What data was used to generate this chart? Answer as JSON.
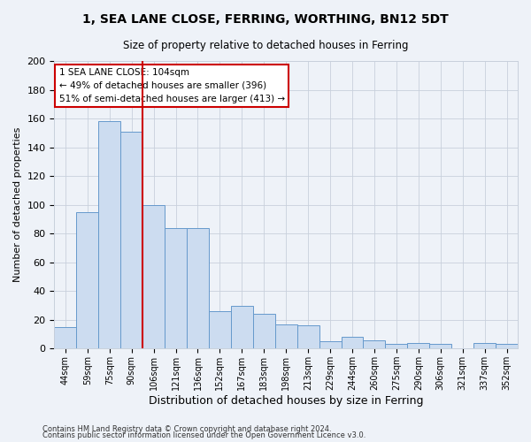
{
  "title": "1, SEA LANE CLOSE, FERRING, WORTHING, BN12 5DT",
  "subtitle": "Size of property relative to detached houses in Ferring",
  "xlabel": "Distribution of detached houses by size in Ferring",
  "ylabel": "Number of detached properties",
  "bar_color": "#ccdcf0",
  "bar_edge_color": "#6699cc",
  "grid_color": "#c8d0dc",
  "background_color": "#eef2f8",
  "categories": [
    "44sqm",
    "59sqm",
    "75sqm",
    "90sqm",
    "106sqm",
    "121sqm",
    "136sqm",
    "152sqm",
    "167sqm",
    "183sqm",
    "198sqm",
    "213sqm",
    "229sqm",
    "244sqm",
    "260sqm",
    "275sqm",
    "290sqm",
    "306sqm",
    "321sqm",
    "337sqm",
    "352sqm"
  ],
  "values": [
    15,
    95,
    158,
    151,
    100,
    84,
    84,
    26,
    30,
    24,
    17,
    16,
    5,
    8,
    6,
    3,
    4,
    3,
    0,
    4,
    3
  ],
  "ylim": [
    0,
    200
  ],
  "yticks": [
    0,
    20,
    40,
    60,
    80,
    100,
    120,
    140,
    160,
    180,
    200
  ],
  "vline_index": 4,
  "vline_color": "#cc0000",
  "annotation_text": "1 SEA LANE CLOSE: 104sqm\n← 49% of detached houses are smaller (396)\n51% of semi-detached houses are larger (413) →",
  "annotation_box_color": "#ffffff",
  "annotation_box_edge": "#cc0000",
  "footer1": "Contains HM Land Registry data © Crown copyright and database right 2024.",
  "footer2": "Contains public sector information licensed under the Open Government Licence v3.0."
}
